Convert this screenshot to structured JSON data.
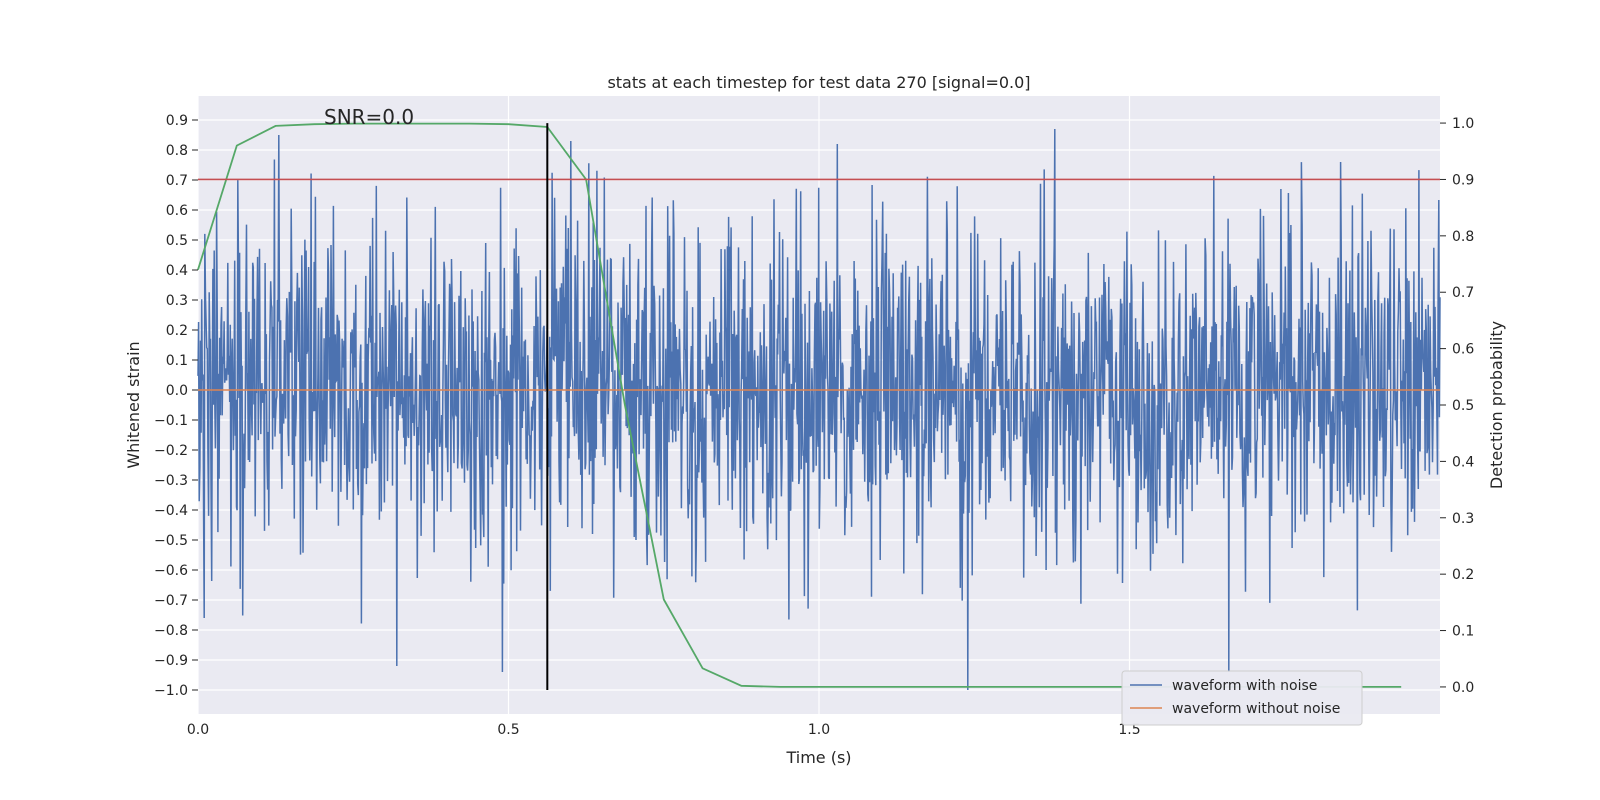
{
  "chart_data": {
    "type": "line",
    "title": "stats at each timestep for test data 270 [signal=0.0]",
    "xlabel": "Time (s)",
    "ylabel": "Whitened strain",
    "y2label": "Detection probability",
    "xlim": [
      0.0,
      2.0
    ],
    "ylim": [
      -1.08,
      0.98
    ],
    "y2lim": [
      -0.048,
      1.048
    ],
    "x_ticks": [
      "0.0",
      "0.5",
      "1.0",
      "1.5"
    ],
    "y_ticks": [
      "0.9",
      "0.8",
      "0.7",
      "0.6",
      "0.5",
      "0.4",
      "0.3",
      "0.2",
      "0.1",
      "0.0",
      "−0.1",
      "−0.2",
      "−0.3",
      "−0.4",
      "−0.5",
      "−0.6",
      "−0.7",
      "−0.8",
      "−0.9",
      "−1.0"
    ],
    "y2_ticks": [
      "1.0",
      "0.9",
      "0.8",
      "0.7",
      "0.6",
      "0.5",
      "0.4",
      "0.3",
      "0.2",
      "0.1",
      "0.0"
    ],
    "grid": true,
    "legend_position": "lower-right",
    "annotation": "SNR=0.0",
    "series": [
      {
        "name": "waveform with noise",
        "color": "#4c72b0",
        "axis": "left",
        "description_samples": 2000,
        "x_start": 0.0,
        "x_end": 2.0,
        "amplitude_std": 0.27,
        "extremes": [
          {
            "x": 0.01,
            "y": -0.76
          },
          {
            "x": 0.13,
            "y": 0.85
          },
          {
            "x": 0.32,
            "y": -0.92
          },
          {
            "x": 0.49,
            "y": -0.94
          },
          {
            "x": 0.6,
            "y": 0.83
          },
          {
            "x": 1.03,
            "y": 0.82
          },
          {
            "x": 1.24,
            "y": 0.86
          },
          {
            "x": 1.24,
            "y": -1.0
          },
          {
            "x": 1.38,
            "y": 0.87
          },
          {
            "x": 1.66,
            "y": -0.94
          },
          {
            "x": 1.84,
            "y": 0.76
          }
        ]
      },
      {
        "name": "waveform without noise",
        "color": "#dd8452",
        "axis": "left",
        "x": [
          0.0,
          2.0
        ],
        "y": [
          0.0,
          0.0
        ]
      },
      {
        "color": "#55a868",
        "axis": "right",
        "x": [
          0.0,
          0.0625,
          0.125,
          0.1875,
          0.25,
          0.3125,
          0.375,
          0.4375,
          0.5,
          0.5625,
          0.625,
          0.6875,
          0.75,
          0.8125,
          0.875,
          0.9375,
          1.0,
          1.0625,
          1.125,
          1.1875,
          1.25,
          1.3125,
          1.375,
          1.4375,
          1.5,
          1.5625,
          1.625,
          1.6875,
          1.75,
          1.8125,
          1.875,
          1.9375
        ],
        "y": [
          0.74,
          0.96,
          0.995,
          0.998,
          0.999,
          0.999,
          0.999,
          0.999,
          0.998,
          0.993,
          0.9,
          0.5,
          0.155,
          0.033,
          0.002,
          0.0,
          0.0,
          0.0,
          0.0,
          0.0,
          0.0,
          0.0,
          0.0,
          0.0,
          0.0,
          0.0,
          0.0,
          0.0,
          0.0,
          0.0,
          0.0,
          0.0
        ]
      }
    ],
    "hlines": [
      {
        "axis": "right",
        "y": 0.9,
        "color": "#c44e52"
      }
    ],
    "vlines": [
      {
        "x": 0.5625,
        "color": "#000000"
      }
    ]
  }
}
